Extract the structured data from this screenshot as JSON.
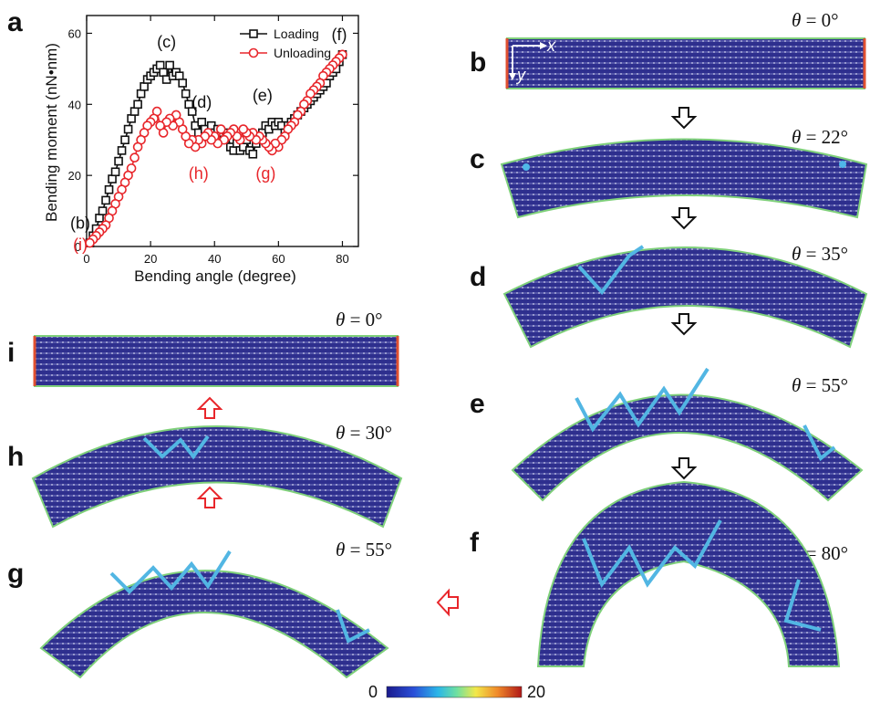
{
  "panels": {
    "a": "a",
    "b": "b",
    "c": "c",
    "d": "d",
    "e": "e",
    "f": "f",
    "g": "g",
    "h": "h",
    "i": "i"
  },
  "theta": {
    "symbol": "θ",
    "b": "= 0°",
    "c": "= 22°",
    "d": "= 35°",
    "e": "= 55°",
    "f": "= 80°",
    "i": "= 0°",
    "h": "= 30°",
    "g": "= 55°"
  },
  "axes_symbols": {
    "x": "x",
    "y": "y"
  },
  "colorbar": {
    "min": "0",
    "max": "20"
  },
  "colors": {
    "loading": "#111111",
    "unloading": "#e8262b",
    "slab": "#2e2f8e",
    "arrow_black": "#111111",
    "arrow_red": "#e8262b"
  },
  "chart_data": {
    "type": "line",
    "title": "",
    "xlabel": "Bending angle (degree)",
    "ylabel": "Bending moment (nN•nm)",
    "xlim": [
      0,
      85
    ],
    "ylim": [
      0,
      65
    ],
    "xticks": [
      "0",
      "20",
      "40",
      "60",
      "80"
    ],
    "yticks": [
      "0",
      "20",
      "40",
      "60"
    ],
    "legend_position": "top-right",
    "series": [
      {
        "name": "Loading",
        "marker": "square",
        "color": "#111111",
        "x": [
          1,
          2,
          3,
          4,
          5,
          6,
          7,
          8,
          9,
          10,
          11,
          12,
          13,
          14,
          15,
          16,
          17,
          18,
          19,
          20,
          21,
          22,
          23,
          24,
          25,
          26,
          27,
          28,
          29,
          30,
          31,
          32,
          33,
          34,
          35,
          36,
          37,
          38,
          39,
          40,
          41,
          42,
          43,
          44,
          45,
          46,
          47,
          48,
          49,
          50,
          51,
          52,
          53,
          54,
          55,
          56,
          57,
          58,
          59,
          60,
          61,
          62,
          63,
          64,
          65,
          66,
          67,
          68,
          69,
          70,
          71,
          72,
          73,
          74,
          75,
          76,
          77,
          78,
          79,
          80
        ],
        "y": [
          1,
          3,
          5,
          8,
          10,
          13,
          16,
          19,
          21,
          24,
          27,
          30,
          33,
          36,
          38,
          40,
          43,
          45,
          47,
          48,
          49,
          50,
          51,
          49,
          47,
          51,
          48,
          49,
          48,
          46,
          43,
          40,
          38,
          34,
          32,
          35,
          33,
          31,
          34,
          32,
          33,
          31,
          30,
          32,
          28,
          27,
          29,
          27,
          28,
          30,
          27,
          26,
          29,
          31,
          32,
          34,
          33,
          35,
          34,
          35,
          34,
          32,
          34,
          35,
          36,
          37,
          38,
          39,
          40,
          41,
          42,
          43,
          44,
          45,
          46,
          48,
          49,
          50,
          52,
          54
        ]
      },
      {
        "name": "Unloading",
        "marker": "circle",
        "color": "#e8262b",
        "x": [
          80,
          79,
          78,
          77,
          76,
          75,
          74,
          73,
          72,
          71,
          70,
          69,
          68,
          67,
          66,
          65,
          64,
          63,
          62,
          61,
          60,
          59,
          58,
          57,
          56,
          55,
          54,
          53,
          52,
          51,
          50,
          49,
          48,
          47,
          46,
          45,
          44,
          43,
          42,
          41,
          40,
          39,
          38,
          37,
          36,
          35,
          34,
          33,
          32,
          31,
          30,
          29,
          28,
          27,
          26,
          25,
          24,
          23,
          22,
          21,
          20,
          19,
          18,
          17,
          16,
          15,
          14,
          13,
          12,
          11,
          10,
          9,
          8,
          7,
          6,
          5,
          4,
          3,
          2,
          1
        ],
        "y": [
          54,
          53,
          52,
          51,
          50,
          49,
          48,
          46,
          45,
          44,
          43,
          41,
          40,
          38,
          37,
          35,
          34,
          33,
          31,
          30,
          28,
          29,
          27,
          28,
          29,
          30,
          31,
          30,
          32,
          31,
          32,
          33,
          30,
          31,
          33,
          32,
          31,
          30,
          33,
          29,
          31,
          30,
          32,
          31,
          29,
          30,
          28,
          30,
          29,
          31,
          33,
          35,
          37,
          34,
          36,
          35,
          32,
          34,
          38,
          36,
          35,
          34,
          32,
          30,
          28,
          25,
          22,
          20,
          18,
          16,
          14,
          12,
          10,
          8,
          6,
          5,
          4,
          3,
          2,
          1
        ]
      }
    ],
    "annotations": [
      {
        "text": "(c)",
        "x": 25,
        "y": 56,
        "color": "#111111"
      },
      {
        "text": "(d)",
        "x": 36,
        "y": 39,
        "color": "#111111"
      },
      {
        "text": "(e)",
        "x": 55,
        "y": 41,
        "color": "#111111"
      },
      {
        "text": "(f)",
        "x": 79,
        "y": 58,
        "color": "#111111"
      },
      {
        "text": "(b)",
        "x": -2,
        "y": 5,
        "color": "#111111"
      },
      {
        "text": "(i)",
        "x": -2,
        "y": -1,
        "color": "#e8262b"
      },
      {
        "text": "(h)",
        "x": 35,
        "y": 19,
        "color": "#e8262b"
      },
      {
        "text": "(g)",
        "x": 56,
        "y": 19,
        "color": "#e8262b"
      }
    ]
  }
}
